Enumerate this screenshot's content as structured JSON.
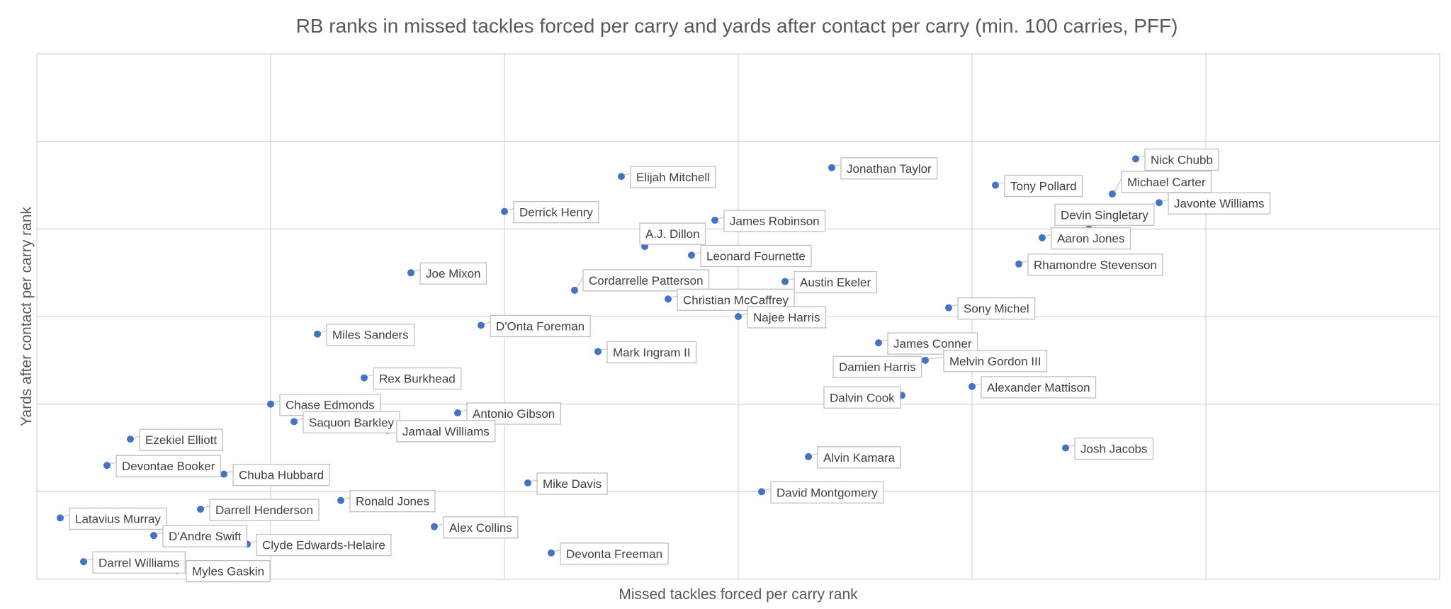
{
  "chart_data": {
    "type": "scatter",
    "title": "RB ranks in missed tackles forced per carry and yards after contact per carry (min. 100 carries, PFF)",
    "xlabel": "Missed tackles forced per carry rank",
    "ylabel": "Yards after contact per carry rank",
    "xlim": [
      0,
      60
    ],
    "ylim": [
      0,
      60
    ],
    "grid": true,
    "marker_color": "#4472c4",
    "points": [
      {
        "name": "Nick Chubb",
        "x": 47,
        "y": 48
      },
      {
        "name": "Michael Carter",
        "x": 46,
        "y": 44
      },
      {
        "name": "Javonte Williams",
        "x": 48,
        "y": 43
      },
      {
        "name": "Devin Singletary",
        "x": 45,
        "y": 40
      },
      {
        "name": "Tony Pollard",
        "x": 41,
        "y": 45
      },
      {
        "name": "Jonathan Taylor",
        "x": 34,
        "y": 47
      },
      {
        "name": "Elijah Mitchell",
        "x": 25,
        "y": 46
      },
      {
        "name": "Derrick Henry",
        "x": 20,
        "y": 42
      },
      {
        "name": "James Robinson",
        "x": 29,
        "y": 41
      },
      {
        "name": "A.J. Dillon",
        "x": 26,
        "y": 38
      },
      {
        "name": "Leonard Fournette",
        "x": 28,
        "y": 37
      },
      {
        "name": "Aaron Jones",
        "x": 43,
        "y": 39
      },
      {
        "name": "Rhamondre Stevenson",
        "x": 42,
        "y": 36
      },
      {
        "name": "Joe Mixon",
        "x": 16,
        "y": 35
      },
      {
        "name": "Cordarrelle Patterson",
        "x": 23,
        "y": 33
      },
      {
        "name": "Austin Ekeler",
        "x": 32,
        "y": 34
      },
      {
        "name": "Christian McCaffrey",
        "x": 27,
        "y": 32
      },
      {
        "name": "Najee Harris",
        "x": 30,
        "y": 30
      },
      {
        "name": "Sony Michel",
        "x": 39,
        "y": 31
      },
      {
        "name": "D'Onta Foreman",
        "x": 19,
        "y": 29
      },
      {
        "name": "Miles Sanders",
        "x": 12,
        "y": 28
      },
      {
        "name": "Mark Ingram II",
        "x": 24,
        "y": 26
      },
      {
        "name": "James Conner",
        "x": 36,
        "y": 27
      },
      {
        "name": "Melvin Gordon III",
        "x": 38,
        "y": 25
      },
      {
        "name": "Damien Harris",
        "x": 35,
        "y": 24
      },
      {
        "name": "Alexander Mattison",
        "x": 40,
        "y": 22
      },
      {
        "name": "Dalvin Cook",
        "x": 37,
        "y": 21
      },
      {
        "name": "Rex Burkhead",
        "x": 14,
        "y": 23
      },
      {
        "name": "Chase Edmonds",
        "x": 10,
        "y": 20
      },
      {
        "name": "Antonio Gibson",
        "x": 18,
        "y": 19
      },
      {
        "name": "Saquon Barkley",
        "x": 11,
        "y": 18
      },
      {
        "name": "Jamaal Williams",
        "x": 15,
        "y": 17
      },
      {
        "name": "Ezekiel Elliott",
        "x": 4,
        "y": 16
      },
      {
        "name": "Devontae Booker",
        "x": 3,
        "y": 13
      },
      {
        "name": "Chuba Hubbard",
        "x": 8,
        "y": 12
      },
      {
        "name": "Josh Jacobs",
        "x": 44,
        "y": 15
      },
      {
        "name": "Alvin Kamara",
        "x": 33,
        "y": 14
      },
      {
        "name": "Mike Davis",
        "x": 21,
        "y": 11
      },
      {
        "name": "David Montgomery",
        "x": 31,
        "y": 10
      },
      {
        "name": "Ronald Jones",
        "x": 13,
        "y": 9
      },
      {
        "name": "Darrell Henderson",
        "x": 7,
        "y": 8
      },
      {
        "name": "Latavius Murray",
        "x": 1,
        "y": 7
      },
      {
        "name": "Alex Collins",
        "x": 17,
        "y": 6
      },
      {
        "name": "D'Andre Swift",
        "x": 5,
        "y": 5
      },
      {
        "name": "Clyde Edwards-Helaire",
        "x": 9,
        "y": 4
      },
      {
        "name": "Devonta Freeman",
        "x": 22,
        "y": 3
      },
      {
        "name": "Darrel Williams",
        "x": 2,
        "y": 2
      },
      {
        "name": "Myles Gaskin",
        "x": 6,
        "y": 1
      }
    ]
  }
}
